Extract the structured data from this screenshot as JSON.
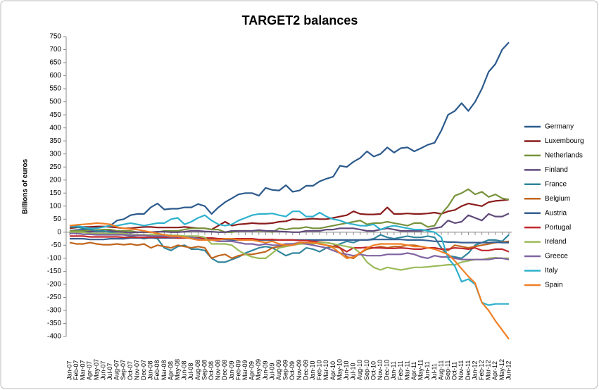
{
  "chart_data": {
    "type": "line",
    "title": "TARGET2 balances",
    "y_label": "Billions of euros",
    "categories": [
      "Jan-07",
      "Feb-07",
      "Mar-07",
      "Apr-07",
      "May-07",
      "Jun-07",
      "Jul-07",
      "Aug-07",
      "Sep-07",
      "Oct-07",
      "Nov-07",
      "Dec-07",
      "Jan-08",
      "Feb-08",
      "Mar-08",
      "Apr-08",
      "May-08",
      "Jun-08",
      "Jul-08",
      "Aug-08",
      "Sep-08",
      "Oct-08",
      "Nov-08",
      "Dec-08",
      "Jan-09",
      "Feb-09",
      "Mar-09",
      "Apr-09",
      "May-09",
      "Jun-09",
      "Jul-09",
      "Aug-09",
      "Sep-09",
      "Oct-09",
      "Nov-09",
      "Dec-09",
      "Jan-10",
      "Feb-10",
      "Mar-10",
      "Apr-10",
      "May-10",
      "Jun-10",
      "Jul-10",
      "Aug-10",
      "Sep-10",
      "Oct-10",
      "Nov-10",
      "Dec-10",
      "Jan-11",
      "Feb-11",
      "Mar-11",
      "Apr-11",
      "May-11",
      "Jun-11",
      "Jul-11",
      "Aug-11",
      "Sep-11",
      "Oct-11",
      "Nov-11",
      "Dec-11",
      "Jan-12",
      "Feb-12",
      "Mar-12",
      "Apr-12",
      "May-12",
      "Jun-12"
    ],
    "ylim": [
      -400,
      750
    ],
    "yticks": [
      -400,
      -350,
      -300,
      -250,
      -200,
      -150,
      -100,
      -50,
      0,
      50,
      100,
      150,
      200,
      250,
      300,
      350,
      400,
      450,
      500,
      550,
      600,
      650,
      700,
      750
    ],
    "legend": "right",
    "series": [
      {
        "name": "Germany",
        "color": "#2c5a8c",
        "values": [
          5,
          8,
          10,
          12,
          18,
          20,
          25,
          45,
          50,
          65,
          70,
          70,
          95,
          110,
          87,
          90,
          90,
          95,
          95,
          108,
          100,
          70,
          95,
          115,
          130,
          145,
          150,
          150,
          140,
          170,
          162,
          160,
          180,
          155,
          160,
          178,
          178,
          195,
          205,
          213,
          255,
          250,
          270,
          285,
          310,
          290,
          300,
          325,
          305,
          322,
          325,
          310,
          322,
          335,
          343,
          390,
          450,
          465,
          495,
          465,
          500,
          550,
          615,
          645,
          700,
          728
        ]
      },
      {
        "name": "Luxembourg",
        "color": "#8b1c1c",
        "values": [
          15,
          18,
          20,
          20,
          22,
          22,
          20,
          18,
          15,
          15,
          18,
          20,
          20,
          18,
          18,
          18,
          18,
          20,
          18,
          15,
          15,
          10,
          25,
          40,
          25,
          30,
          32,
          35,
          33,
          33,
          35,
          40,
          42,
          50,
          48,
          50,
          52,
          50,
          50,
          55,
          60,
          65,
          80,
          70,
          68,
          68,
          70,
          95,
          70,
          70,
          72,
          70,
          70,
          72,
          75,
          70,
          80,
          85,
          100,
          110,
          105,
          100,
          115,
          120,
          122,
          125
        ]
      },
      {
        "name": "Netherlands",
        "color": "#77933c",
        "values": [
          5,
          5,
          5,
          8,
          8,
          10,
          10,
          5,
          5,
          5,
          0,
          0,
          0,
          0,
          5,
          5,
          5,
          10,
          15,
          15,
          15,
          10,
          10,
          0,
          0,
          5,
          5,
          5,
          5,
          5,
          0,
          15,
          10,
          15,
          15,
          20,
          15,
          15,
          20,
          25,
          30,
          35,
          40,
          45,
          30,
          35,
          35,
          40,
          35,
          30,
          25,
          35,
          35,
          20,
          25,
          70,
          100,
          140,
          150,
          165,
          145,
          155,
          135,
          145,
          130,
          125
        ]
      },
      {
        "name": "Finland",
        "color": "#604a7b",
        "values": [
          -5,
          -3,
          0,
          2,
          3,
          3,
          5,
          2,
          0,
          -2,
          0,
          0,
          0,
          2,
          2,
          0,
          0,
          2,
          5,
          5,
          3,
          2,
          0,
          0,
          5,
          5,
          5,
          5,
          8,
          5,
          5,
          3,
          2,
          0,
          0,
          5,
          5,
          5,
          10,
          10,
          15,
          15,
          15,
          10,
          5,
          5,
          10,
          15,
          10,
          5,
          5,
          5,
          5,
          10,
          15,
          20,
          45,
          35,
          40,
          65,
          55,
          45,
          70,
          60,
          60,
          72
        ]
      },
      {
        "name": "France",
        "color": "#31859c",
        "values": [
          20,
          20,
          15,
          10,
          5,
          5,
          0,
          -5,
          -10,
          -15,
          -20,
          -25,
          -20,
          -25,
          -60,
          -70,
          -55,
          -50,
          -65,
          -65,
          -70,
          -100,
          -115,
          -115,
          -105,
          -95,
          -80,
          -70,
          -60,
          -55,
          -60,
          -75,
          -90,
          -80,
          -80,
          -60,
          -65,
          -75,
          -60,
          -55,
          -45,
          -35,
          -40,
          -30,
          -30,
          -25,
          -10,
          -20,
          -25,
          -20,
          -15,
          -20,
          -20,
          -15,
          -20,
          -60,
          -90,
          -95,
          -100,
          -80,
          -50,
          -40,
          -30,
          -30,
          -35,
          -10
        ]
      },
      {
        "name": "Belgium",
        "color": "#c0661e",
        "values": [
          -40,
          -45,
          -45,
          -40,
          -45,
          -48,
          -48,
          -45,
          -48,
          -45,
          -50,
          -45,
          -60,
          -50,
          -55,
          -60,
          -50,
          -55,
          -60,
          -55,
          -60,
          -100,
          -90,
          -85,
          -100,
          -90,
          -85,
          -85,
          -80,
          -75,
          -60,
          -55,
          -50,
          -50,
          -45,
          -40,
          -40,
          -45,
          -50,
          -55,
          -60,
          -95,
          -100,
          -80,
          -65,
          -60,
          -55,
          -60,
          -55,
          -55,
          -50,
          -50,
          -55,
          -60,
          -60,
          -65,
          -70,
          -50,
          -55,
          -60,
          -55,
          -50,
          -45,
          -40,
          -38,
          -35
        ]
      },
      {
        "name": "Austria",
        "color": "#376092",
        "values": [
          -25,
          -25,
          -25,
          -28,
          -28,
          -28,
          -25,
          -25,
          -25,
          -22,
          -22,
          -22,
          -22,
          -22,
          -22,
          -22,
          -22,
          -22,
          -22,
          -22,
          -25,
          -25,
          -28,
          -28,
          -30,
          -30,
          -30,
          -30,
          -30,
          -30,
          -30,
          -30,
          -30,
          -30,
          -30,
          -30,
          -30,
          -30,
          -30,
          -30,
          -30,
          -30,
          -30,
          -30,
          -30,
          -28,
          -28,
          -28,
          -28,
          -28,
          -30,
          -30,
          -30,
          -32,
          -35,
          -35,
          -38,
          -38,
          -40,
          -40,
          -40,
          -40,
          -40,
          -38,
          -40,
          -40
        ]
      },
      {
        "name": "Portugal",
        "color": "#c0282d",
        "values": [
          -15,
          -15,
          -15,
          -18,
          -18,
          -18,
          -18,
          -18,
          -20,
          -20,
          -20,
          -20,
          -20,
          -20,
          -20,
          -20,
          -22,
          -22,
          -22,
          -22,
          -22,
          -22,
          -25,
          -25,
          -25,
          -25,
          -25,
          -25,
          -28,
          -28,
          -28,
          -30,
          -30,
          -30,
          -32,
          -32,
          -35,
          -38,
          -40,
          -45,
          -60,
          -75,
          -60,
          -60,
          -58,
          -60,
          -60,
          -62,
          -62,
          -60,
          -62,
          -65,
          -65,
          -60,
          -60,
          -65,
          -65,
          -60,
          -62,
          -65,
          -60,
          -70,
          -70,
          -65,
          -65,
          -75
        ]
      },
      {
        "name": "Ireland",
        "color": "#9bbb59",
        "values": [
          0,
          0,
          0,
          -5,
          -5,
          -5,
          -5,
          -5,
          -5,
          -10,
          -10,
          -10,
          -10,
          -10,
          -10,
          -12,
          -12,
          -15,
          -15,
          -15,
          -20,
          -45,
          -45,
          -45,
          -50,
          -70,
          -85,
          -95,
          -100,
          -100,
          -80,
          -60,
          -55,
          -50,
          -45,
          -45,
          -45,
          -40,
          -40,
          -45,
          -50,
          -55,
          -60,
          -80,
          -115,
          -135,
          -145,
          -135,
          -140,
          -145,
          -140,
          -135,
          -135,
          -133,
          -130,
          -128,
          -125,
          -125,
          -115,
          -110,
          -105,
          -105,
          -100,
          -98,
          -100,
          -100
        ]
      },
      {
        "name": "Greece",
        "color": "#8064a2",
        "values": [
          -5,
          -5,
          -8,
          -8,
          -10,
          -10,
          -10,
          -10,
          -10,
          -12,
          -12,
          -12,
          -15,
          -15,
          -15,
          -18,
          -18,
          -20,
          -20,
          -25,
          -30,
          -30,
          -35,
          -35,
          -35,
          -40,
          -45,
          -45,
          -50,
          -45,
          -50,
          -50,
          -45,
          -45,
          -40,
          -45,
          -50,
          -55,
          -60,
          -70,
          -80,
          -85,
          -90,
          -85,
          -90,
          -90,
          -90,
          -85,
          -85,
          -85,
          -80,
          -85,
          -95,
          -100,
          -90,
          -95,
          -95,
          -100,
          -105,
          -105,
          -105,
          -105,
          -105,
          -100,
          -100,
          -105
        ]
      },
      {
        "name": "Italy",
        "color": "#2eb1cc",
        "values": [
          25,
          25,
          20,
          15,
          15,
          20,
          25,
          25,
          30,
          35,
          30,
          25,
          30,
          35,
          35,
          50,
          55,
          30,
          40,
          55,
          65,
          45,
          30,
          25,
          30,
          45,
          55,
          65,
          70,
          70,
          72,
          65,
          60,
          80,
          80,
          60,
          60,
          75,
          60,
          50,
          45,
          35,
          30,
          25,
          25,
          30,
          10,
          20,
          25,
          20,
          15,
          10,
          10,
          5,
          0,
          -20,
          -100,
          -130,
          -190,
          -180,
          -200,
          -270,
          -280,
          -275,
          -275,
          -275
        ]
      },
      {
        "name": "Spain",
        "color": "#f07f25",
        "values": [
          25,
          28,
          30,
          32,
          35,
          33,
          30,
          20,
          15,
          12,
          10,
          5,
          0,
          -5,
          -10,
          -15,
          -15,
          -20,
          -25,
          -30,
          -30,
          -30,
          -30,
          -25,
          -25,
          -30,
          -30,
          -30,
          -35,
          -40,
          -35,
          -45,
          -50,
          -50,
          -40,
          -40,
          -40,
          -45,
          -50,
          -60,
          -80,
          -100,
          -95,
          -80,
          -60,
          -50,
          -45,
          -45,
          -45,
          -45,
          -50,
          -55,
          -55,
          -60,
          -65,
          -75,
          -85,
          -110,
          -140,
          -170,
          -195,
          -270,
          -300,
          -340,
          -375,
          -410
        ]
      }
    ]
  }
}
